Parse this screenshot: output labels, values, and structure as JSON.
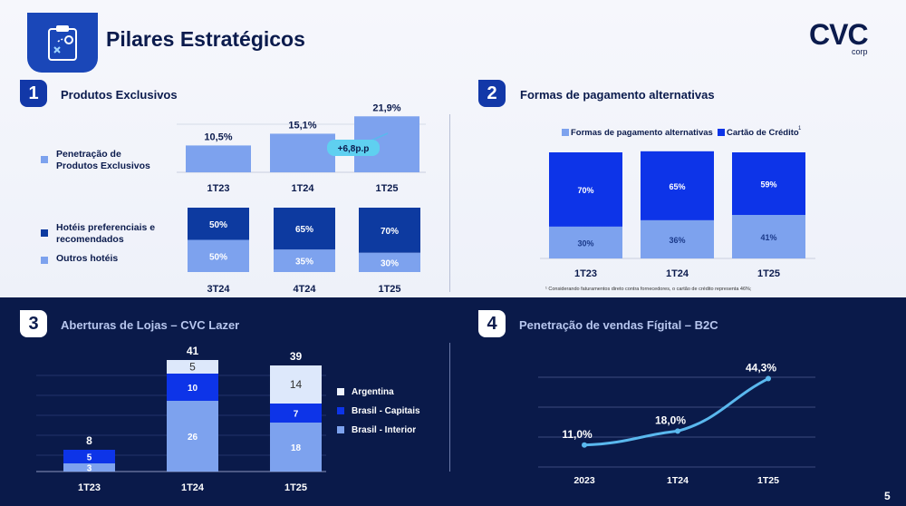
{
  "header": {
    "title": "Pilares Estratégicos",
    "logo": "CVC",
    "logo_sub": "corp",
    "icon": "strategy-board-icon"
  },
  "page_number": "5",
  "sections": {
    "s1": {
      "number": "1",
      "title": "Produtos Exclusivos"
    },
    "s2": {
      "number": "2",
      "title": "Formas de pagamento alternativas"
    },
    "s3": {
      "number": "3",
      "title": "Aberturas de Lojas – CVC Lazer"
    },
    "s4": {
      "number": "4",
      "title": "Penetração de vendas  Fígital – B2C"
    }
  },
  "legends": {
    "penetracao": "Penetração de Produtos Exclusivos",
    "hoteis_pref": "Hotéis preferenciais e recomendados",
    "outros": "Outros hotéis",
    "formas": "Formas de pagamento alternativas",
    "cartao": "Cartão de Crédito",
    "cartao_sup": "1",
    "argentina": "Argentina",
    "capitais": "Brasil - Capitais",
    "interior": "Brasil - Interior"
  },
  "footnote": "¹ Considerando faturamentos direto contra fornecedores, o cartão de crédito representa 46%;",
  "colors": {
    "light_blue": "#7da2ee",
    "mid_blue": "#2e6bef",
    "dark_blue": "#0d3aa0",
    "bright_blue": "#0d34e8",
    "pale": "#dde8fb",
    "navy": "#0a1a4a",
    "line": "#5ab8ee"
  },
  "chart_data": [
    {
      "id": "penetracao",
      "type": "bar",
      "categories": [
        "1T23",
        "1T24",
        "1T25"
      ],
      "values": [
        10.5,
        15.1,
        21.9
      ],
      "value_labels": [
        "10,5%",
        "15,1%",
        "21,9%"
      ],
      "annotation": "+6,8p.p",
      "ylim": [
        0,
        22
      ]
    },
    {
      "id": "hoteis",
      "type": "bar",
      "stacked": true,
      "categories": [
        "3T24",
        "4T24",
        "1T25"
      ],
      "series": [
        {
          "name": "Outros hotéis",
          "values": [
            50,
            35,
            30
          ],
          "labels": [
            "50%",
            "35%",
            "30%"
          ]
        },
        {
          "name": "Hotéis preferenciais e recomendados",
          "values": [
            50,
            65,
            70
          ],
          "labels": [
            "50%",
            "65%",
            "70%"
          ]
        }
      ]
    },
    {
      "id": "pagamento",
      "type": "bar",
      "stacked": true,
      "categories": [
        "1T23",
        "1T24",
        "1T25"
      ],
      "series": [
        {
          "name": "Formas de pagamento alternativas",
          "values": [
            30,
            36,
            41
          ],
          "labels": [
            "30%",
            "36%",
            "41%"
          ]
        },
        {
          "name": "Cartão de Crédito",
          "values": [
            70,
            65,
            59
          ],
          "labels": [
            "70%",
            "65%",
            "59%"
          ]
        }
      ]
    },
    {
      "id": "lojas",
      "type": "bar",
      "stacked": true,
      "categories": [
        "1T23",
        "1T24",
        "1T25"
      ],
      "totals": [
        "8",
        "41",
        "39"
      ],
      "series": [
        {
          "name": "Brasil - Interior",
          "values": [
            3,
            26,
            18
          ],
          "labels": [
            "3",
            "26",
            "18"
          ]
        },
        {
          "name": "Brasil - Capitais",
          "values": [
            5,
            10,
            7
          ],
          "labels": [
            "5",
            "10",
            "7"
          ]
        },
        {
          "name": "Argentina",
          "values": [
            0,
            5,
            14
          ],
          "labels": [
            "",
            "5",
            "14"
          ]
        }
      ],
      "ylim": [
        0,
        42
      ]
    },
    {
      "id": "figital",
      "type": "line",
      "categories": [
        "2023",
        "1T24",
        "1T25"
      ],
      "values": [
        11.0,
        18.0,
        44.3
      ],
      "value_labels": [
        "11,0%",
        "18,0%",
        "44,3%"
      ],
      "ylim": [
        0,
        50
      ]
    }
  ]
}
